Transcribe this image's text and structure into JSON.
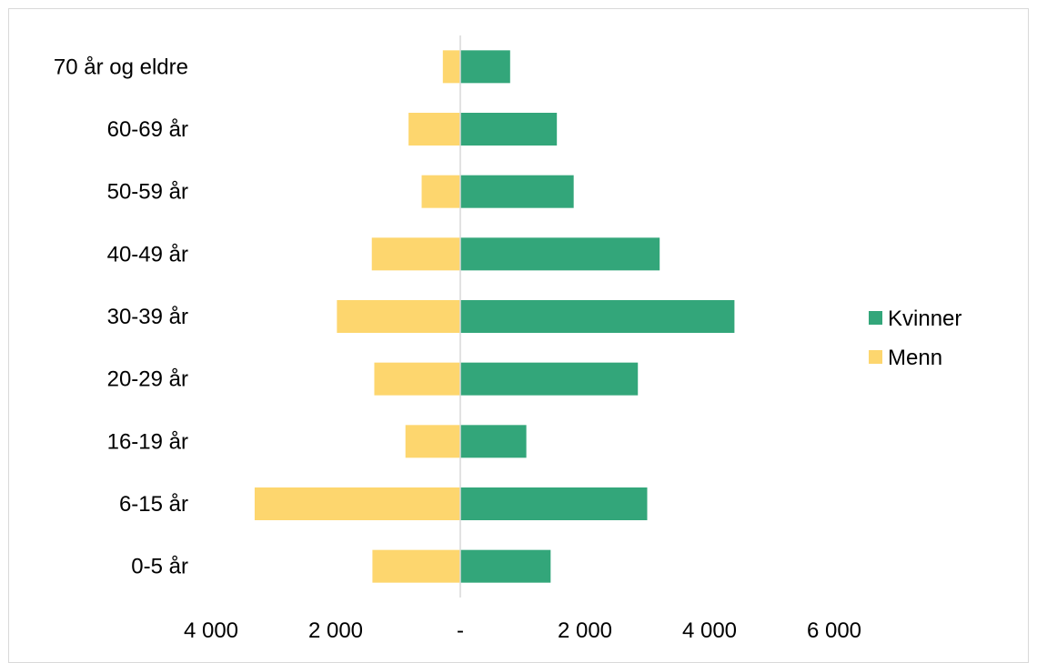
{
  "chart_data": {
    "type": "bar",
    "orientation": "horizontal",
    "layout": "population-pyramid",
    "categories": [
      "70 år og eldre",
      "60-69 år",
      "50-59 år",
      "40-49 år",
      "30-39 år",
      "20-29 år",
      "16-19 år",
      "6-15 år",
      "0-5 år"
    ],
    "series": [
      {
        "name": "Kvinner",
        "color": "#33a67a",
        "direction": "right",
        "values": [
          800,
          1550,
          1820,
          3200,
          4400,
          2850,
          1060,
          3000,
          1450
        ]
      },
      {
        "name": "Menn",
        "color": "#fdd66e",
        "direction": "left",
        "values": [
          280,
          830,
          620,
          1420,
          1980,
          1380,
          880,
          3300,
          1410
        ]
      }
    ],
    "x_ticks": [
      {
        "value": -4000,
        "label": "4 000"
      },
      {
        "value": -2000,
        "label": "2 000"
      },
      {
        "value": 0,
        "label": "-"
      },
      {
        "value": 2000,
        "label": "2 000"
      },
      {
        "value": 4000,
        "label": "4 000"
      },
      {
        "value": 6000,
        "label": "6 000"
      }
    ],
    "xlim": [
      -5000,
      6000
    ],
    "grid": false,
    "legend_position": "right",
    "axis_color": "#d9d9d9"
  }
}
